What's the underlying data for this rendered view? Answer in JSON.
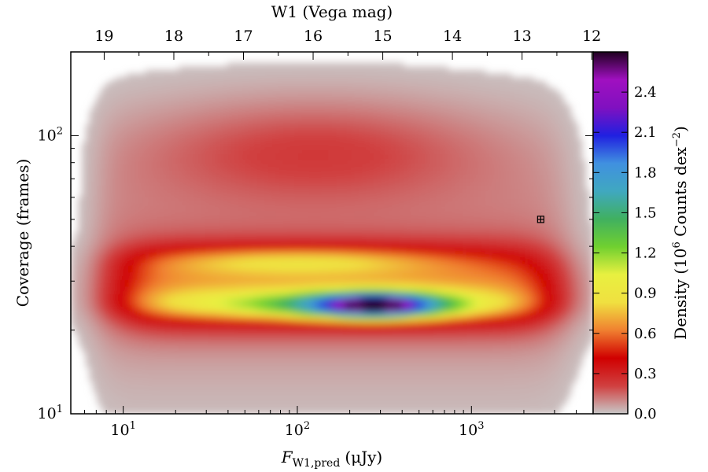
{
  "chart_data": {
    "type": "heatmap",
    "title": "",
    "xlabel": "F",
    "xlabel_sub": "W1,pred",
    "xlabel_unit": "(μJy)",
    "ylabel": "Coverage (frames)",
    "top_xlabel": "W1 (Vega mag)",
    "colorbar_label": "Density (10",
    "colorbar_label_exp1": "6",
    "colorbar_label_mid": " Counts dex",
    "colorbar_label_exp2": "−2",
    "colorbar_label_end": ")",
    "x_scale": "log",
    "y_scale": "log",
    "xlim": [
      5,
      5000
    ],
    "ylim": [
      10,
      200
    ],
    "x_ticks": [
      {
        "value": 10,
        "base": "10",
        "exp": "1"
      },
      {
        "value": 100,
        "base": "10",
        "exp": "2"
      },
      {
        "value": 1000,
        "base": "10",
        "exp": "3"
      }
    ],
    "y_ticks": [
      {
        "value": 10,
        "base": "10",
        "exp": "1"
      },
      {
        "value": 100,
        "base": "10",
        "exp": "2"
      }
    ],
    "top_ticks": [
      {
        "mag": 19,
        "label": "19"
      },
      {
        "mag": 18,
        "label": "18"
      },
      {
        "mag": 17,
        "label": "17"
      },
      {
        "mag": 16,
        "label": "16"
      },
      {
        "mag": 15,
        "label": "15"
      },
      {
        "mag": 14,
        "label": "14"
      },
      {
        "mag": 13,
        "label": "13"
      },
      {
        "mag": 12,
        "label": "12"
      }
    ],
    "colorbar": {
      "range": [
        0,
        2.7
      ],
      "ticks": [
        "0.0",
        "0.3",
        "0.6",
        "0.9",
        "1.2",
        "1.5",
        "1.8",
        "2.1",
        "2.4"
      ],
      "tick_values": [
        0.0,
        0.3,
        0.6,
        0.9,
        1.2,
        1.5,
        1.8,
        2.1,
        2.4
      ],
      "colormap": [
        "#c8c8c8",
        "#d04040",
        "#d00000",
        "#f08030",
        "#f0e040",
        "#e8f040",
        "#70d030",
        "#40b060",
        "#40a8c0",
        "#4090e0",
        "#2020e0",
        "#8010c0",
        "#a010c0",
        "#200020"
      ]
    },
    "peak": {
      "flux": 280,
      "coverage": 24.5,
      "density": 2.7
    },
    "error_marker": {
      "flux": 2500,
      "coverage": 50
    }
  }
}
